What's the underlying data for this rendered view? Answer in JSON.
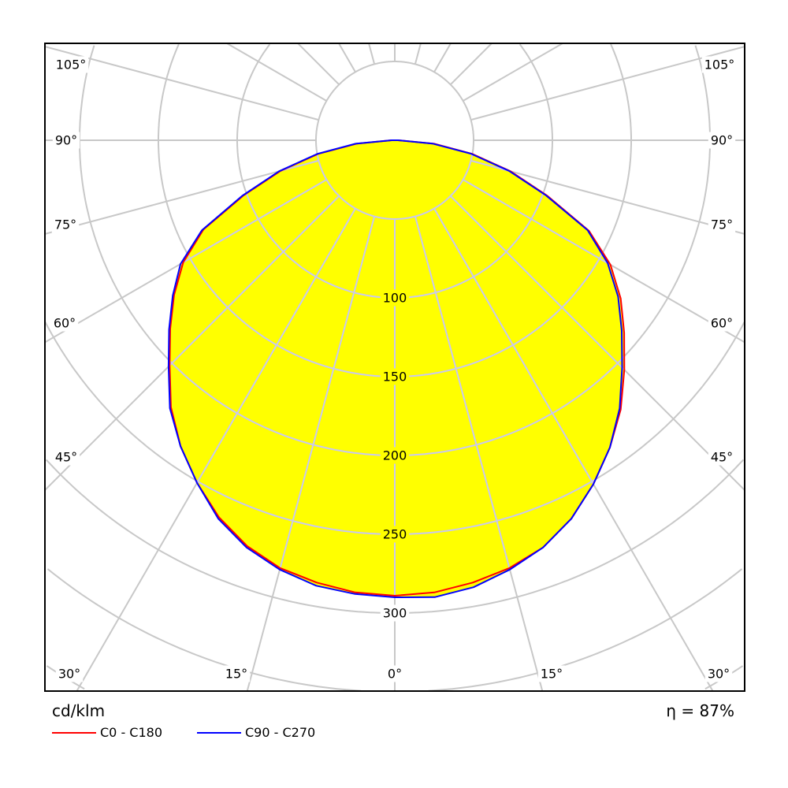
{
  "chart_data": {
    "type": "polar",
    "unit_label": "cd/klm",
    "efficiency_label": "η = 87%",
    "radial_ticks": [
      100,
      150,
      200,
      250,
      300
    ],
    "radial_grid_step": 50,
    "radial_range": [
      0,
      400
    ],
    "angle_grid_step_deg": 15,
    "angle_labels": {
      "left": [
        "105°",
        "90°",
        "75°",
        "60°",
        "45°",
        "30°",
        "15°"
      ],
      "center": "0°",
      "right": [
        "15°",
        "30°",
        "45°",
        "60°",
        "75°",
        "90°",
        "105°"
      ]
    },
    "grid": true,
    "fill_color": "#ffff00",
    "angles_deg": [
      0,
      5,
      10,
      15,
      20,
      25,
      30,
      35,
      40,
      45,
      50,
      55,
      60,
      65,
      70,
      75,
      80,
      85,
      90
    ],
    "series": [
      {
        "name": "C0 - C180",
        "color": "#ff0000",
        "right_values": [
          289,
          288,
          285,
          281,
          275,
          265,
          252,
          238,
          223,
          206,
          190,
          175,
          158,
          136,
          103,
          76,
          50,
          25,
          2
        ],
        "left_values": [
          289,
          288,
          285,
          281,
          274,
          264,
          251,
          237,
          221,
          202,
          186,
          171,
          155,
          134,
          102,
          75,
          49,
          24,
          2
        ]
      },
      {
        "name": "C90 - C270",
        "color": "#0000ff",
        "right_values": [
          290,
          291,
          288,
          282,
          275,
          265,
          252,
          238,
          222,
          204,
          188,
          173,
          156,
          135,
          102,
          75,
          49,
          24,
          2
        ],
        "left_values": [
          290,
          289,
          287,
          282,
          275,
          265,
          251,
          237,
          222,
          203,
          187,
          172,
          157,
          135,
          103,
          76,
          50,
          25,
          2
        ]
      }
    ],
    "legend_position": "bottom-left"
  }
}
